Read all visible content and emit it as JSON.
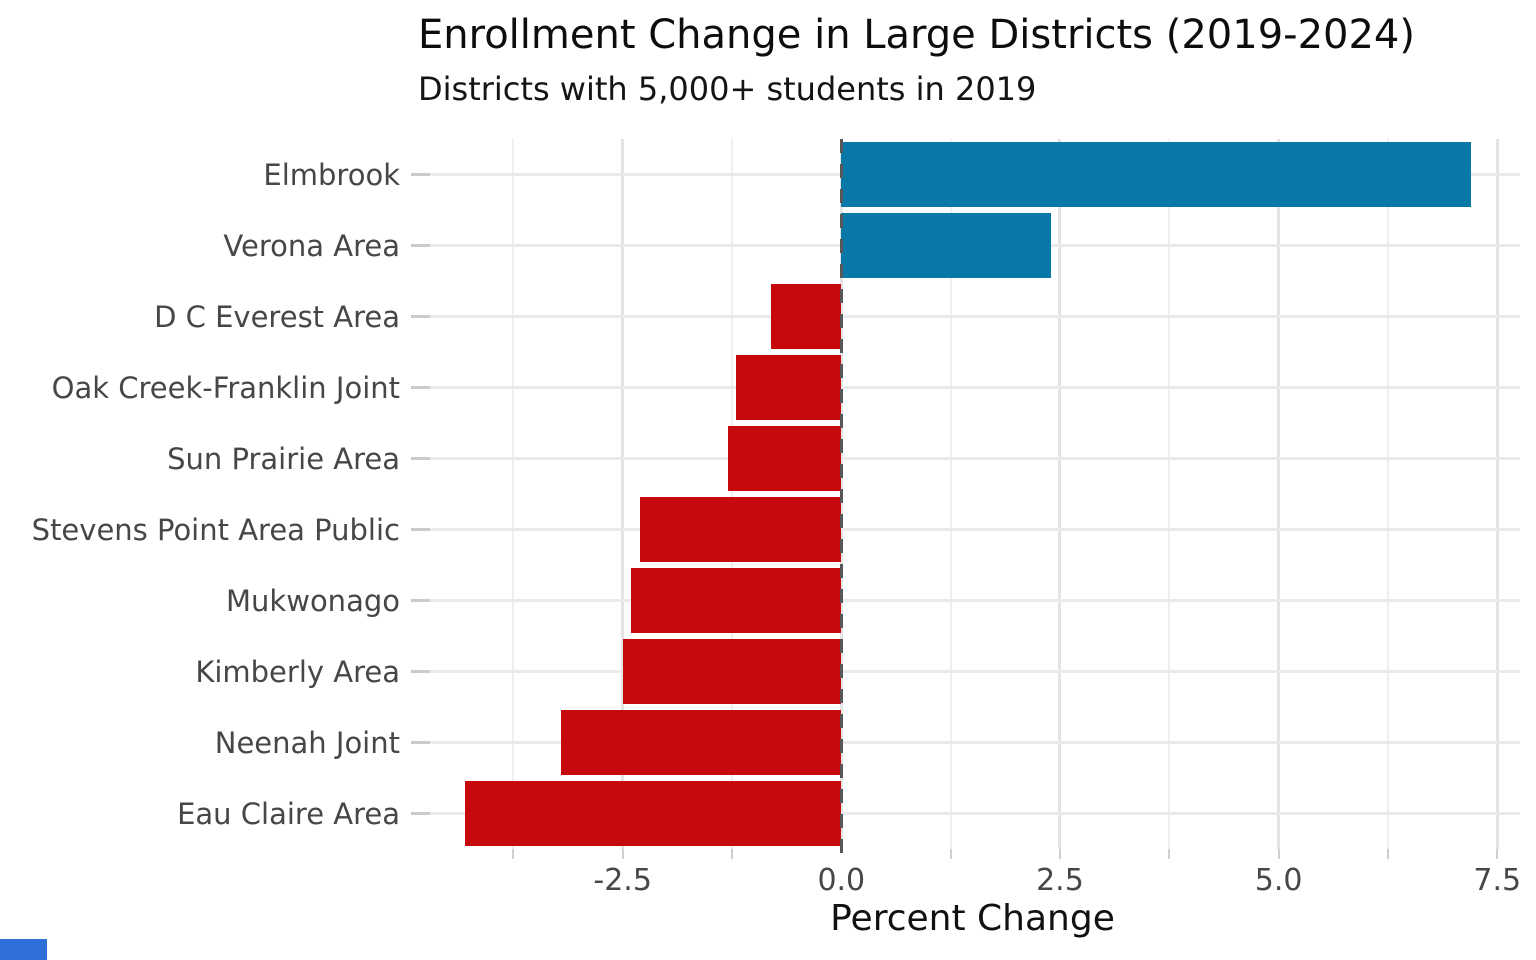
{
  "chart_data": {
    "type": "bar",
    "orientation": "horizontal",
    "title": "Enrollment Change in Large Districts (2019-2024)",
    "subtitle": "Districts with 5,000+ students in 2019",
    "xlabel": "Percent Change",
    "categories": [
      "Elmbrook",
      "Verona Area",
      "D C Everest Area",
      "Oak Creek-Franklin Joint",
      "Sun Prairie Area",
      "Stevens Point Area Public",
      "Mukwonago",
      "Kimberly Area",
      "Neenah Joint",
      "Eau Claire Area"
    ],
    "values": [
      7.2,
      2.4,
      -0.8,
      -1.2,
      -1.3,
      -2.3,
      -2.4,
      -2.5,
      -3.2,
      -4.3
    ],
    "x_ticks": [
      -2.5,
      0,
      2.5,
      5,
      7.5
    ],
    "x_tick_labels": [
      "-2.5",
      "0.0",
      "2.5",
      "5.0",
      "7.5"
    ],
    "xlim": [
      -4.76,
      7.76
    ],
    "minor_grid_step": 1.25,
    "grid": true,
    "legend": "none",
    "zero_line_style": "dashed",
    "colors": {
      "positive_bar": "#0878a8",
      "negative_bar": "#c5090d",
      "zero_line": "#585858",
      "grid_major": "#e4e4e4",
      "grid_minor": "#efefef",
      "axis_tick": "#cbcbcb",
      "label_text": "#474747",
      "title_text": "#0d0d0d"
    }
  },
  "misc": {
    "bottom_left_badge_color": "#2f6fd8"
  }
}
